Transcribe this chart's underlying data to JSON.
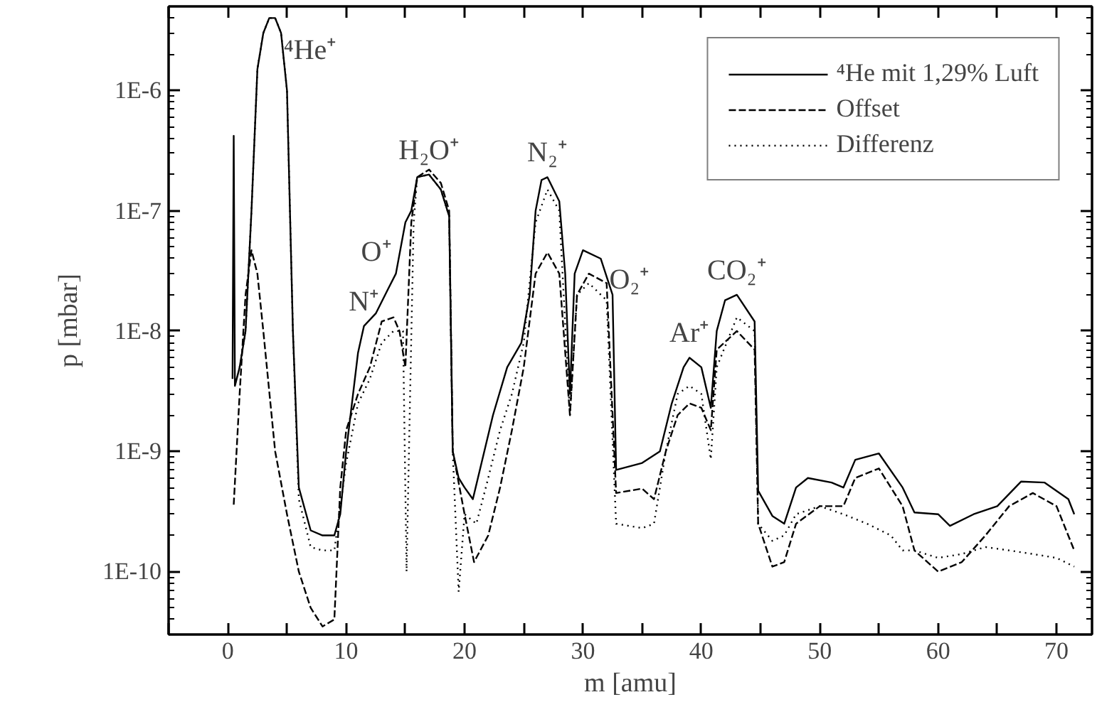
{
  "chart_data": {
    "type": "line",
    "xlabel": "m [amu]",
    "ylabel": "p [mbar]",
    "log": "y",
    "xlim": [
      -5,
      73
    ],
    "ylim": [
      3e-11,
      5e-06
    ],
    "xticks": [
      0,
      10,
      20,
      30,
      40,
      50,
      60,
      70,
      {
        "value": -5,
        "label": null
      },
      {
        "value": 5,
        "label": null
      },
      {
        "value": 15,
        "label": null
      },
      {
        "value": 25,
        "label": null
      },
      {
        "value": 35,
        "label": null
      },
      {
        "value": 45,
        "label": null
      },
      {
        "value": 55,
        "label": null
      },
      {
        "value": 65,
        "label": null
      }
    ],
    "yticks": [
      {
        "value": 1e-10,
        "label": "1E-10"
      },
      {
        "value": 1e-09,
        "label": "1E-9"
      },
      {
        "value": 1e-08,
        "label": "1E-8"
      },
      {
        "value": 1e-07,
        "label": "1E-7"
      },
      {
        "value": 1e-06,
        "label": "1E-6"
      }
    ],
    "grid": false,
    "legend": "top right",
    "series": [
      {
        "name": "⁴He mit 1,29% Luft",
        "color": "#000000",
        "line_style": "solid",
        "x": [
          0.4,
          0.5,
          0.6,
          1.0,
          1.5,
          2.0,
          2.5,
          3.0,
          3.5,
          4.0,
          4.5,
          5.0,
          5.5,
          6.0,
          7.0,
          8.0,
          9.0,
          9.5,
          10.0,
          11.0,
          11.5,
          12.5,
          13.5,
          14.2,
          15.0,
          15.5,
          16.0,
          17.0,
          18.0,
          18.7,
          19.0,
          19.5,
          20.0,
          20.7,
          22.4,
          23.6,
          24.8,
          25.5,
          26.0,
          26.5,
          27.0,
          28.0,
          28.5,
          28.9,
          29.3,
          30.0,
          31.5,
          32.5,
          32.8,
          35.0,
          36.5,
          37.5,
          38.5,
          39.0,
          40.0,
          40.8,
          41.3,
          42.0,
          43.0,
          44.5,
          44.8,
          46.0,
          47.0,
          48.0,
          49.0,
          51.0,
          52.0,
          53.0,
          55.0,
          57.0,
          58.0,
          60.0,
          61.0,
          63.0,
          65.0,
          67.0,
          69.0,
          71.0,
          71.5
        ],
        "values": [
          4e-09,
          4.2e-07,
          3.5e-09,
          5e-09,
          1e-08,
          1e-07,
          1.5e-06,
          3e-06,
          4e-06,
          4e-06,
          3e-06,
          1e-06,
          1e-08,
          5e-10,
          2.2e-10,
          2e-10,
          2e-10,
          3e-10,
          1e-09,
          6.6e-09,
          1.1e-08,
          1.4e-08,
          2.2e-08,
          3e-08,
          8e-08,
          1e-07,
          1.9e-07,
          2e-07,
          1.5e-07,
          9e-08,
          1e-09,
          6e-10,
          5e-10,
          4e-10,
          2e-09,
          5e-09,
          8e-09,
          2e-08,
          1e-07,
          1.8e-07,
          1.9e-07,
          1.2e-07,
          3e-08,
          3e-09,
          3e-08,
          4.7e-08,
          4e-08,
          2e-08,
          7e-10,
          8e-10,
          1e-09,
          2.5e-09,
          5e-09,
          6e-09,
          5e-09,
          2.3e-09,
          1e-08,
          1.8e-08,
          2e-08,
          1.2e-08,
          4.7e-10,
          2.9e-10,
          2.5e-10,
          5e-10,
          6e-10,
          5.5e-10,
          5e-10,
          8.5e-10,
          9.6e-10,
          5e-10,
          3.1e-10,
          3e-10,
          2.4e-10,
          3e-10,
          3.5e-10,
          5.6e-10,
          5.5e-10,
          4e-10,
          3e-10
        ]
      },
      {
        "name": "Offset",
        "color": "#000000",
        "line_style": "dashed",
        "x": [
          0.5,
          1.0,
          1.5,
          2.0,
          2.5,
          3.0,
          4.0,
          5.0,
          6.0,
          7.0,
          8.0,
          9.0,
          9.5,
          10.0,
          11.0,
          12.0,
          13.0,
          14.0,
          14.5,
          15.0,
          15.5,
          16.0,
          17.0,
          18.0,
          18.7,
          19.0,
          20.0,
          20.8,
          22.0,
          23.0,
          24.0,
          25.0,
          26.0,
          27.0,
          28.0,
          28.9,
          29.5,
          30.5,
          32.0,
          32.8,
          35.0,
          36.0,
          37.0,
          38.0,
          39.0,
          40.0,
          40.8,
          41.3,
          43.0,
          44.5,
          44.8,
          46.0,
          47.0,
          48.0,
          50.0,
          52.0,
          53.0,
          55.0,
          57.0,
          58.0,
          60.0,
          62.0,
          64.0,
          66.0,
          68.0,
          70.0,
          71.5
        ],
        "values": [
          3.6e-10,
          3e-09,
          2e-08,
          4.7e-08,
          3e-08,
          1e-08,
          1e-09,
          3e-10,
          1e-10,
          5e-11,
          3.5e-11,
          4e-11,
          5e-10,
          1.5e-09,
          3e-09,
          5e-09,
          1.2e-08,
          1.3e-08,
          1e-08,
          5e-09,
          8e-08,
          1.9e-07,
          2.2e-07,
          1.7e-07,
          1e-07,
          1e-09,
          3e-10,
          1.2e-10,
          2e-10,
          5e-10,
          1.5e-09,
          5e-09,
          3e-08,
          4.5e-08,
          3e-08,
          2e-09,
          2e-08,
          3e-08,
          2.5e-08,
          4.5e-10,
          4.9e-10,
          4e-10,
          1e-09,
          2e-09,
          2.5e-09,
          2.3e-09,
          1.5e-09,
          7e-09,
          1e-08,
          7e-09,
          2.5e-10,
          1.1e-10,
          1.2e-10,
          2.5e-10,
          3.5e-10,
          3.5e-10,
          6e-10,
          7.2e-10,
          3.5e-10,
          1.5e-10,
          1e-10,
          1.2e-10,
          2e-10,
          3.5e-10,
          4.5e-10,
          3.5e-10,
          1.5e-10
        ]
      },
      {
        "name": "Differenz",
        "color": "#000000",
        "line_style": "dotted",
        "x": [
          1.0,
          1.5,
          2.0,
          2.5,
          3.0,
          3.5,
          4.0,
          4.5,
          5.0,
          5.5,
          6.0,
          7.0,
          8.0,
          9.0,
          10.0,
          11.0,
          12.0,
          13.0,
          14.0,
          14.8,
          15.1,
          15.4,
          15.7,
          16.0,
          17.0,
          18.0,
          18.7,
          19.0,
          19.5,
          20.0,
          21.0,
          22.0,
          23.0,
          24.0,
          25.0,
          26.0,
          27.0,
          28.0,
          28.9,
          29.5,
          30.5,
          32.0,
          32.8,
          35.0,
          36.0,
          37.0,
          38.0,
          39.0,
          40.0,
          40.8,
          41.3,
          43.0,
          44.5,
          44.8,
          46.0,
          47.0,
          48.0,
          50.0,
          52.0,
          54.0,
          56.0,
          57.0,
          58.0,
          60.0,
          62.0,
          64.0,
          66.0,
          68.0,
          70.0,
          71.5
        ],
        "values": [
          5e-09,
          1e-08,
          1e-07,
          1.5e-06,
          3e-06,
          4e-06,
          4e-06,
          3e-06,
          1e-06,
          1e-08,
          4e-10,
          1.6e-10,
          1.5e-10,
          1.5e-10,
          8e-10,
          2.5e-09,
          4e-09,
          8e-09,
          1e-08,
          1e-08,
          1e-10,
          3e-09,
          8e-08,
          1.9e-07,
          2e-07,
          1.5e-07,
          9e-08,
          1e-09,
          6.8e-11,
          3e-10,
          2.5e-10,
          6e-10,
          1.5e-09,
          3e-09,
          8e-09,
          8e-08,
          1.5e-07,
          1e-07,
          2e-09,
          2e-08,
          2.5e-08,
          1.8e-08,
          2.5e-10,
          2.3e-10,
          2.5e-10,
          1e-09,
          3e-09,
          3.5e-09,
          3e-09,
          8.6e-10,
          5e-09,
          1.3e-08,
          1e-08,
          2.5e-10,
          1.8e-10,
          2e-10,
          3e-10,
          3.5e-10,
          3e-10,
          2.5e-10,
          2e-10,
          1.5e-10,
          1.5e-10,
          1.3e-10,
          1.4e-10,
          1.6e-10,
          1.5e-10,
          1.4e-10,
          1.3e-10,
          1.1e-10
        ]
      }
    ],
    "annotations": [
      {
        "text": "⁴He⁺",
        "x": 4.0,
        "y": 4e-06
      },
      {
        "text": "H₂O⁺",
        "x": 17.0,
        "y": 2e-07
      },
      {
        "text": "O⁺",
        "x": 14.2,
        "y": 3e-08
      },
      {
        "text": "N⁺",
        "x": 11.5,
        "y": 1.1e-08
      },
      {
        "text": "N₂⁺",
        "x": 27.0,
        "y": 1.9e-07
      },
      {
        "text": "O₂⁺",
        "x": 31.5,
        "y": 4e-08
      },
      {
        "text": "Ar⁺",
        "x": 39.0,
        "y": 6e-09
      },
      {
        "text": "CO₂⁺",
        "x": 43.0,
        "y": 2e-08
      }
    ]
  }
}
